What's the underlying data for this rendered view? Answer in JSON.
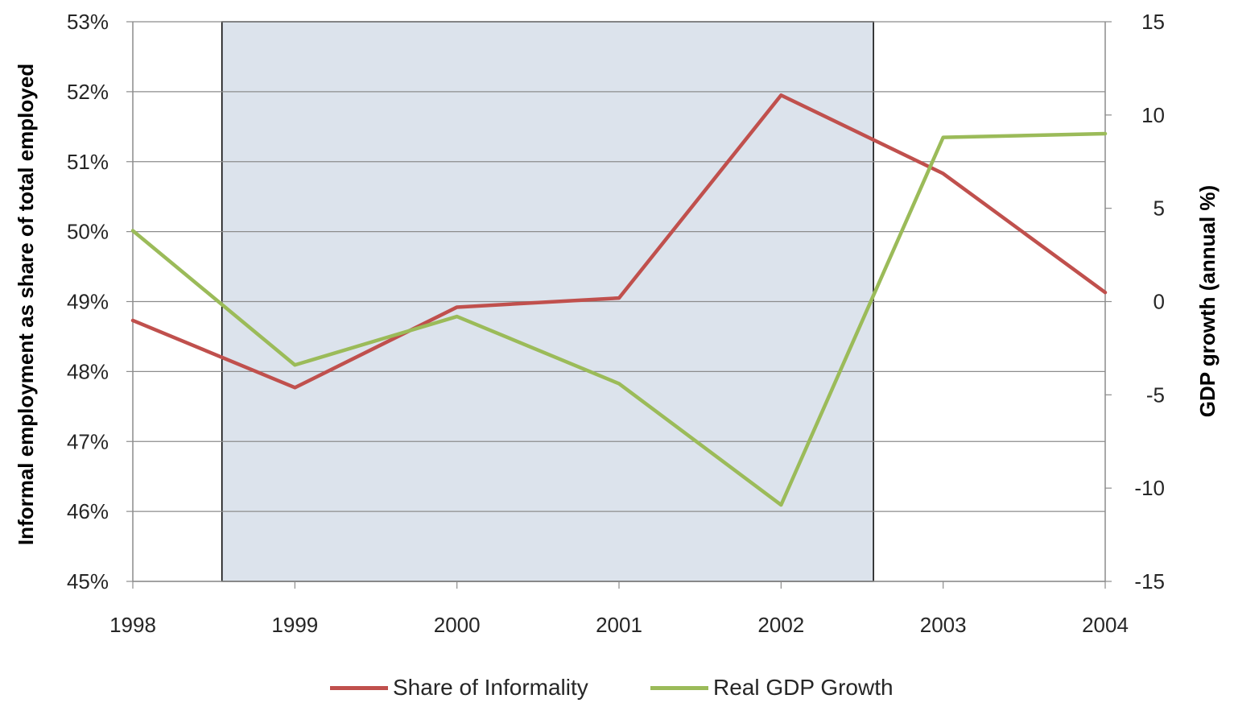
{
  "chart_data": {
    "type": "line",
    "x": [
      "1998",
      "1999",
      "2000",
      "2001",
      "2002",
      "2003",
      "2004"
    ],
    "series": [
      {
        "name": "Share of Informality",
        "axis": "left",
        "color": "#c0504d",
        "values": [
          48.73,
          47.77,
          48.92,
          49.05,
          51.95,
          50.83,
          49.13
        ]
      },
      {
        "name": "Real GDP Growth",
        "axis": "right",
        "color": "#9bbb59",
        "values": [
          3.8,
          -3.4,
          -0.8,
          -4.4,
          -10.9,
          8.8,
          9.0
        ]
      }
    ],
    "y_left": {
      "label": "Informal employment as share of total employed",
      "ylim": [
        45,
        53
      ],
      "ticks": [
        "45%",
        "46%",
        "47%",
        "48%",
        "49%",
        "50%",
        "51%",
        "52%",
        "53%"
      ]
    },
    "y_right": {
      "label": "GDP growth (annual %)",
      "ylim": [
        -15,
        15
      ],
      "ticks": [
        "-15",
        "-10",
        "-5",
        "0",
        "5",
        "10",
        "15"
      ]
    },
    "shaded_period": {
      "from": "1998.55",
      "to": "2002.57",
      "color": "#dce3ec"
    },
    "grid": true,
    "legend_position": "bottom"
  }
}
